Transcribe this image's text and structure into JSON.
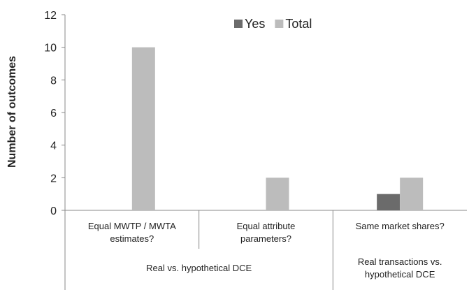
{
  "chart_data": {
    "type": "bar",
    "y_label": "Number of outcomes",
    "categories": [
      "Equal MWTP / MWTA estimates?",
      "Equal attribute parameters?",
      "Same market shares?"
    ],
    "category_groups": [
      {
        "name": "Real vs. hypothetical DCE",
        "size": 2
      },
      {
        "name": "Real transactions vs. hypothetical DCE",
        "size": 1
      }
    ],
    "series": [
      {
        "name": "Yes",
        "color": "#6b6b6b",
        "values": [
          0,
          0,
          1
        ]
      },
      {
        "name": "Total",
        "color": "#bcbcbc",
        "values": [
          10,
          2,
          2
        ]
      }
    ],
    "ylim": [
      0,
      12
    ],
    "yticks": [
      0,
      2,
      4,
      6,
      8,
      10,
      12
    ],
    "legend": "top"
  }
}
